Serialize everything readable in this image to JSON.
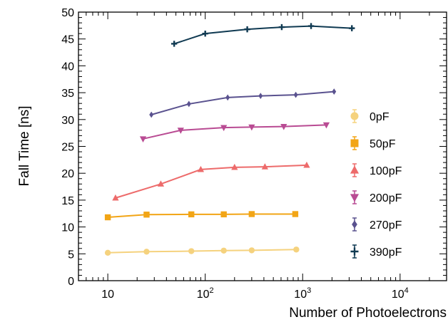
{
  "chart_data": {
    "type": "line",
    "xscale": "log",
    "xlabel": "Number of Photoelectrons",
    "ylabel": "Fall Time [ns]",
    "xlim": [
      5,
      30000
    ],
    "ylim": [
      0,
      50
    ],
    "yticks": [
      0,
      5,
      10,
      15,
      20,
      25,
      30,
      35,
      40,
      45,
      50
    ],
    "xticks": [
      {
        "value": 10,
        "base": "10",
        "exp": ""
      },
      {
        "value": 100,
        "base": "10",
        "exp": "2"
      },
      {
        "value": 1000,
        "base": "10",
        "exp": "3"
      },
      {
        "value": 10000,
        "base": "10",
        "exp": "4"
      }
    ],
    "grid": false,
    "legend_position": "right",
    "series": [
      {
        "name": "0pF",
        "color": "#f5d27e",
        "marker": "circle",
        "x": [
          10,
          25,
          72,
          155,
          300,
          860
        ],
        "y": [
          5.2,
          5.4,
          5.5,
          5.6,
          5.65,
          5.8
        ]
      },
      {
        "name": "50pF",
        "color": "#f2a516",
        "marker": "square",
        "x": [
          10,
          25,
          72,
          155,
          300,
          840
        ],
        "y": [
          11.8,
          12.3,
          12.35,
          12.35,
          12.4,
          12.4
        ]
      },
      {
        "name": "100pF",
        "color": "#ed6b6b",
        "marker": "triangle-up",
        "x": [
          12,
          35,
          90,
          200,
          410,
          1100
        ],
        "y": [
          15.4,
          18.0,
          20.7,
          21.1,
          21.2,
          21.5
        ]
      },
      {
        "name": "200pF",
        "color": "#b94b93",
        "marker": "triangle-down",
        "x": [
          23,
          56,
          155,
          300,
          640,
          1750
        ],
        "y": [
          26.4,
          28.0,
          28.5,
          28.6,
          28.7,
          29.0
        ]
      },
      {
        "name": "270pF",
        "color": "#5a528f",
        "marker": "diamond",
        "x": [
          28,
          68,
          170,
          370,
          850,
          2100
        ],
        "y": [
          30.9,
          32.9,
          34.1,
          34.4,
          34.6,
          35.2
        ]
      },
      {
        "name": "390pF",
        "color": "#103a52",
        "marker": "plus",
        "x": [
          48,
          100,
          270,
          610,
          1220,
          3200
        ],
        "y": [
          44.1,
          46.0,
          46.8,
          47.2,
          47.4,
          47.0
        ]
      }
    ]
  }
}
